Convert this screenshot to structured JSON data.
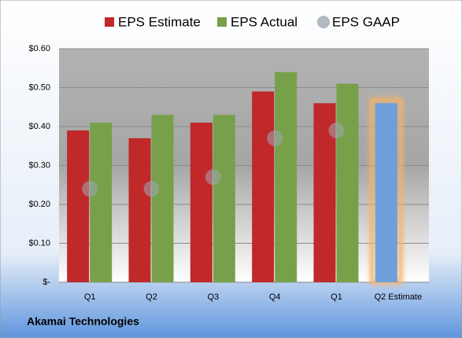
{
  "chart_data": {
    "type": "bar",
    "categories": [
      "Q1",
      "Q2",
      "Q3",
      "Q4",
      "Q1",
      "Q2 Estimate"
    ],
    "series": [
      {
        "name": "EPS Estimate",
        "color": "#c0282a",
        "values": [
          0.39,
          0.37,
          0.41,
          0.49,
          0.46,
          0.46
        ],
        "highlight_index": 5,
        "highlight_color": "#6f9fd8",
        "highlight_glow": "#f5b26b"
      },
      {
        "name": "EPS Actual",
        "color": "#77a04a",
        "values": [
          0.41,
          0.43,
          0.43,
          0.54,
          0.51,
          null
        ]
      },
      {
        "name": "EPS GAAP",
        "color": "#a0a8b4",
        "marker": "circle",
        "values": [
          0.24,
          0.24,
          0.27,
          0.37,
          0.39,
          null
        ]
      }
    ],
    "ylim": [
      0,
      0.6
    ],
    "yticks": [
      {
        "value": 0,
        "label": "$-"
      },
      {
        "value": 0.1,
        "label": "$0.10"
      },
      {
        "value": 0.2,
        "label": "$0.20"
      },
      {
        "value": 0.3,
        "label": "$0.30"
      },
      {
        "value": 0.4,
        "label": "$0.40"
      },
      {
        "value": 0.5,
        "label": "$0.50"
      },
      {
        "value": 0.6,
        "label": "$0.60"
      }
    ],
    "grid": true,
    "legend": "top",
    "footer": "Akamai Technologies"
  }
}
